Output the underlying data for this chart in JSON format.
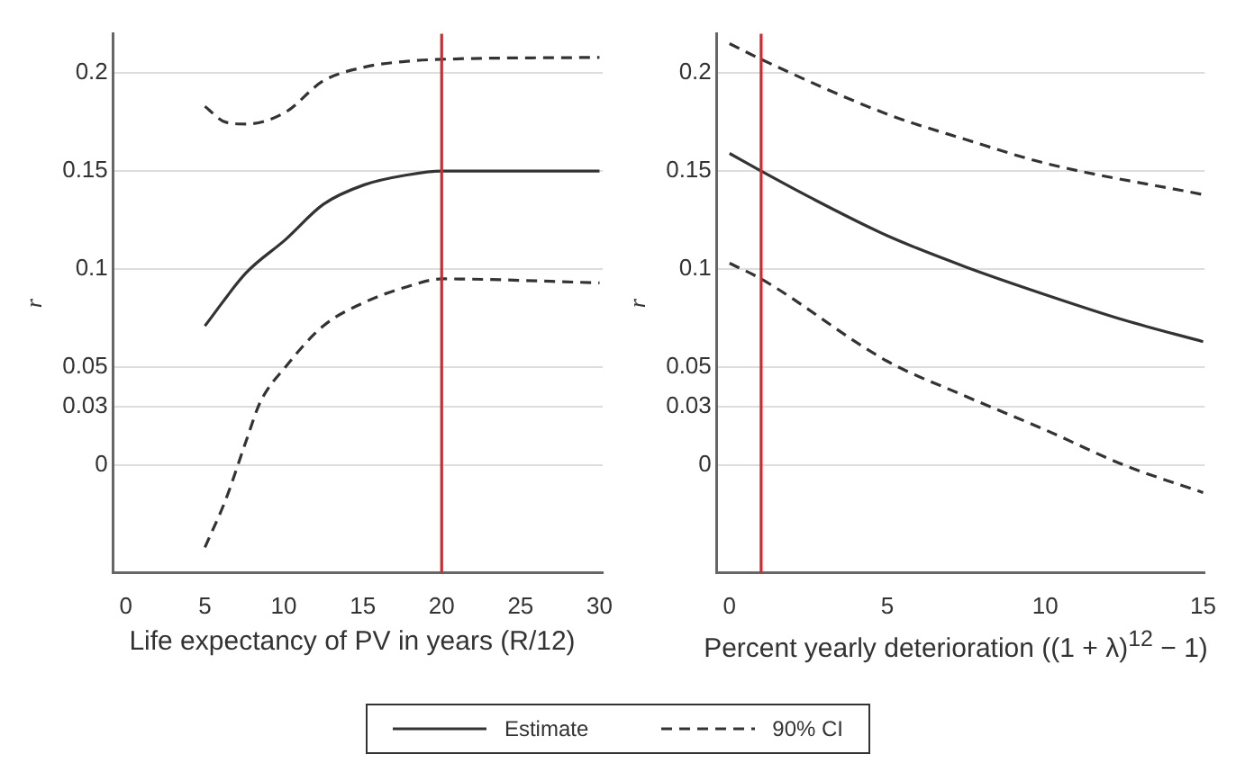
{
  "chart_data": [
    {
      "type": "line",
      "xlabel": "Life expectancy of PV in years (R/12)",
      "ylabel": "r",
      "xlim": [
        -0.8,
        30.2
      ],
      "xticks": [
        0,
        5,
        10,
        15,
        20,
        25,
        30
      ],
      "ylim": [
        -0.055,
        0.22
      ],
      "yticks": [
        0,
        0.03,
        0.05,
        0.1,
        0.15,
        0.2
      ],
      "grid": "y",
      "legend": "bottom",
      "marker": "none",
      "ref_lines": [
        {
          "axis": "x",
          "value": 20,
          "color": "#d9262b"
        }
      ],
      "series": [
        {
          "name": "Estimate",
          "color": "#333333",
          "line_style": "solid",
          "x": [
            5,
            7.6,
            10.1,
            12.5,
            15.1,
            17.8,
            20,
            30
          ],
          "values": [
            0.071,
            0.098,
            0.115,
            0.133,
            0.143,
            0.148,
            0.15,
            0.15
          ]
        },
        {
          "name": "90% CI",
          "color": "#333333",
          "line_style": "dashed",
          "x": [
            5,
            6.3,
            7.6,
            10.1,
            12.5,
            15.1,
            17.8,
            20,
            30
          ],
          "values": [
            0.183,
            0.175,
            0.174,
            0.18,
            0.196,
            0.203,
            0.206,
            0.207,
            0.208
          ]
        },
        {
          "color": "#333333",
          "line_style": "dashed",
          "x": [
            5,
            6.3,
            7.6,
            8.5,
            10.1,
            12.5,
            15.1,
            17.8,
            20,
            30
          ],
          "values": [
            -0.042,
            -0.018,
            0.012,
            0.032,
            0.05,
            0.071,
            0.083,
            0.091,
            0.095,
            0.093
          ]
        }
      ]
    },
    {
      "type": "line",
      "xlabel": "Percent yearly deterioration ((1 + λ)$^{12}$ − 1)",
      "ylabel": "r",
      "xlim": [
        -0.4,
        15.05
      ],
      "xticks": [
        0,
        5,
        10,
        15
      ],
      "ylim": [
        -0.055,
        0.22
      ],
      "yticks": [
        0,
        0.03,
        0.05,
        0.1,
        0.15,
        0.2
      ],
      "grid": "y",
      "marker": "none",
      "ref_lines": [
        {
          "axis": "x",
          "value": 1,
          "color": "#d9262b"
        }
      ],
      "series": [
        {
          "color": "#333333",
          "line_style": "solid",
          "x": [
            0,
            1,
            2.5,
            5,
            7.5,
            10,
            12.5,
            15
          ],
          "values": [
            0.159,
            0.15,
            0.137,
            0.117,
            0.101,
            0.087,
            0.074,
            0.063
          ]
        },
        {
          "color": "#333333",
          "line_style": "dashed",
          "x": [
            0,
            1,
            5,
            7.5,
            10,
            15
          ],
          "values": [
            0.215,
            0.207,
            0.179,
            0.166,
            0.154,
            0.138
          ]
        },
        {
          "color": "#333333",
          "line_style": "dashed",
          "x": [
            0,
            1,
            5,
            7.5,
            10,
            12.5,
            15
          ],
          "values": [
            0.103,
            0.095,
            0.053,
            0.035,
            0.018,
            0,
            -0.014
          ]
        }
      ]
    }
  ]
}
